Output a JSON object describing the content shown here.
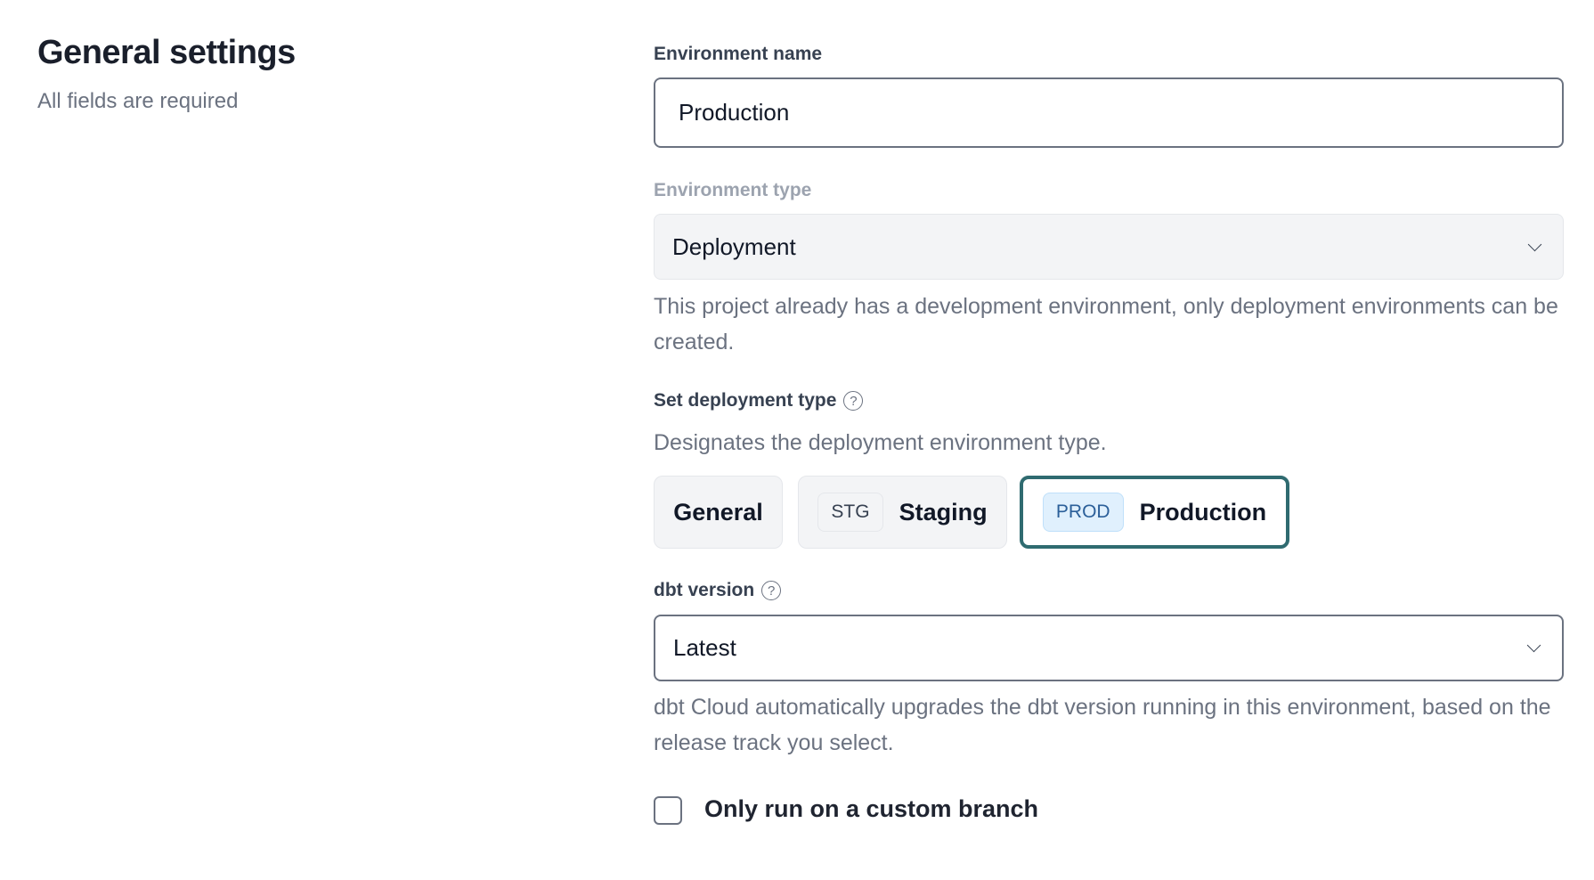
{
  "section": {
    "title": "General settings",
    "subtitle": "All fields are required"
  },
  "environment_name": {
    "label": "Environment name",
    "value": "Production"
  },
  "environment_type": {
    "label": "Environment type",
    "value": "Deployment",
    "help_text": "This project already has a development environment, only deployment environments can be created."
  },
  "deployment_type": {
    "label": "Set deployment type",
    "help_icon": "?",
    "description": "Designates the deployment environment type.",
    "options": [
      {
        "label": "General",
        "badge": "",
        "selected": false
      },
      {
        "label": "Staging",
        "badge": "STG",
        "selected": false
      },
      {
        "label": "Production",
        "badge": "PROD",
        "selected": true
      }
    ],
    "selected_color": "#2f6b70"
  },
  "dbt_version": {
    "label": "dbt version",
    "help_icon": "?",
    "value": "Latest",
    "help_text": "dbt Cloud automatically upgrades the dbt version running in this environment, based on the release track you select."
  },
  "custom_branch": {
    "label": "Only run on a custom branch",
    "checked": false
  }
}
